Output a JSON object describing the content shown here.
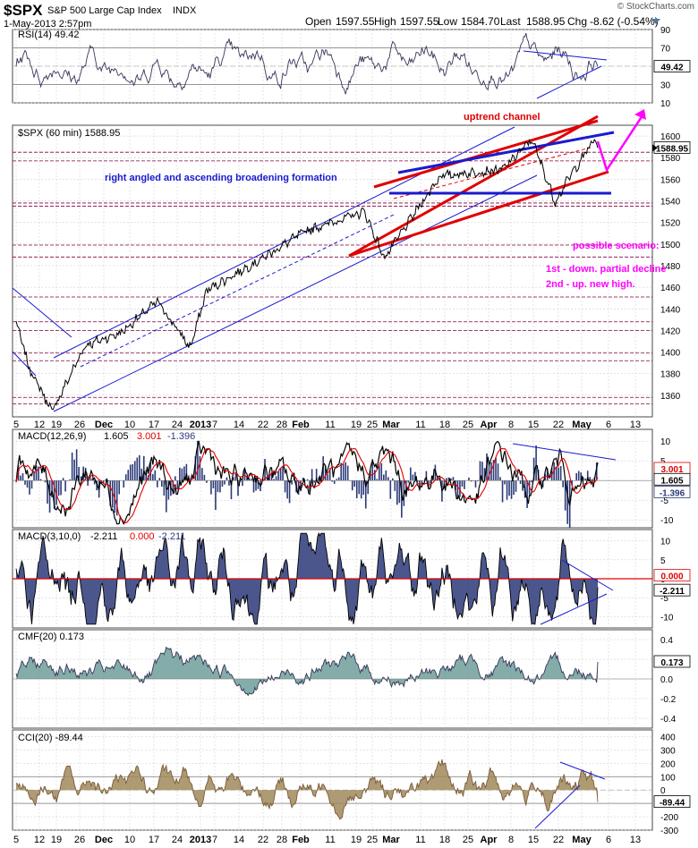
{
  "header": {
    "symbol": "$SPX",
    "name": "S&P 500 Large Cap Index",
    "exchange": "INDX",
    "date": "1-May-2013 2:57pm",
    "watermark": "© StockCharts.com",
    "open_label": "Open",
    "open": "1597.55",
    "high_label": "High",
    "high": "1597.55",
    "low_label": "Low",
    "low": "1584.70",
    "last_label": "Last",
    "last": "1588.95",
    "chg_label": "Chg",
    "chg": "-8.62 (-0.54%)"
  },
  "colors": {
    "background": "#ffffff",
    "panel_border": "#4a4a4a",
    "grid": "#c8c8c8",
    "price": "#000000",
    "channel_blue": "#1a1ad0",
    "uptrend_red": "#e00000",
    "support_purple": "#800040",
    "scenario_magenta": "#ff00ff",
    "indicator_line": "#36365a",
    "hist_fill": "#2b3a78",
    "cmf_fill": "#6f9f9a",
    "cci_fill": "#a08a5a",
    "macd_signal": "#e00000",
    "label_bg": "#ffffff"
  },
  "chart_data": [
    {
      "type": "line",
      "name": "RSI(14)",
      "legend": "RSI(14) 49.42",
      "ylim": [
        10,
        90
      ],
      "yticks": [
        "90",
        "70",
        "50",
        "30",
        "10"
      ],
      "last_value": "49.42",
      "levels": [
        70,
        30
      ]
    },
    {
      "type": "line",
      "name": "$SPX (60 min)",
      "legend": "$SPX (60 min) 1588.95",
      "ylim": [
        1340,
        1610
      ],
      "yticks": [
        "1600",
        "1580",
        "1560",
        "1540",
        "1520",
        "1500",
        "1480",
        "1460",
        "1440",
        "1420",
        "1400",
        "1380",
        "1360"
      ],
      "last_value": "1588.95",
      "x_ticks": [
        "5",
        "12",
        "19",
        "26",
        "Dec",
        "10",
        "17",
        "24",
        "2013",
        "7",
        "14",
        "22",
        "28",
        "Feb",
        "11",
        "19",
        "25",
        "Mar",
        "11",
        "18",
        "25",
        "Apr",
        "8",
        "15",
        "22",
        "May",
        "6",
        "13"
      ],
      "key_points": [
        {
          "date": "2012-11-05",
          "value": 1428
        },
        {
          "date": "2012-11-09",
          "value": 1385
        },
        {
          "date": "2012-11-16",
          "value": 1345
        },
        {
          "date": "2012-11-26",
          "value": 1406
        },
        {
          "date": "2012-12-07",
          "value": 1418
        },
        {
          "date": "2012-12-18",
          "value": 1447
        },
        {
          "date": "2012-12-28",
          "value": 1404
        },
        {
          "date": "2013-01-02",
          "value": 1457
        },
        {
          "date": "2013-01-18",
          "value": 1485
        },
        {
          "date": "2013-02-01",
          "value": 1512
        },
        {
          "date": "2013-02-19",
          "value": 1530
        },
        {
          "date": "2013-02-25",
          "value": 1487
        },
        {
          "date": "2013-03-14",
          "value": 1563
        },
        {
          "date": "2013-04-02",
          "value": 1569
        },
        {
          "date": "2013-04-11",
          "value": 1597
        },
        {
          "date": "2013-04-18",
          "value": 1539
        },
        {
          "date": "2013-04-22",
          "value": 1560
        },
        {
          "date": "2013-04-30",
          "value": 1597
        },
        {
          "date": "2013-05-01",
          "value": 1588.95
        }
      ],
      "annotations": {
        "uptrend_channel": "uptrend channel",
        "broadening": "right angled and ascending broadening formation",
        "scenario_title": "possible scenario:",
        "scenario_1": "1st - down. partial decline",
        "scenario_2": "2nd - up. new high."
      },
      "horizontal_levels": [
        1585,
        1577,
        1538,
        1535,
        1499,
        1488,
        1451,
        1428,
        1420,
        1399,
        1392,
        1358,
        1352
      ]
    },
    {
      "type": "line",
      "name": "MACD(12,26,9)",
      "legend_name": "MACD(12,26,9)",
      "legend_v1": "1.605",
      "legend_v2": "3.001",
      "legend_v3": "-1.396",
      "ylim": [
        -12,
        13
      ],
      "yticks": [
        "10",
        "5",
        "0",
        "-5",
        "-10"
      ],
      "last_values": [
        "3.001",
        "1.605",
        "-1.396"
      ]
    },
    {
      "type": "line",
      "name": "MACD(3,10,0)",
      "legend_name": "MACD(3,10,0)",
      "legend_v1": "-2.211",
      "legend_v2": "0.000",
      "legend_v3": "-2.211",
      "ylim": [
        -13,
        13
      ],
      "yticks": [
        "10",
        "5",
        "0",
        "-5",
        "-10"
      ],
      "last_values": [
        "0.000",
        "-2.211"
      ]
    },
    {
      "type": "area",
      "name": "CMF(20)",
      "legend": "CMF(20) 0.173",
      "ylim": [
        -0.5,
        0.5
      ],
      "yticks": [
        "0.4",
        "0.2",
        "0.0",
        "-0.2",
        "-0.4"
      ],
      "last_value": "0.173"
    },
    {
      "type": "line",
      "name": "CCI(20)",
      "legend": "CCI(20) -89.44",
      "ylim": [
        -300,
        450
      ],
      "yticks": [
        "400",
        "300",
        "200",
        "100",
        "0",
        "-100",
        "-200",
        "-300"
      ],
      "last_value": "-89.44"
    }
  ],
  "icons": {
    "dropdown": "dropdown-triangle-icon",
    "price_marker": "price-marker-icon"
  }
}
